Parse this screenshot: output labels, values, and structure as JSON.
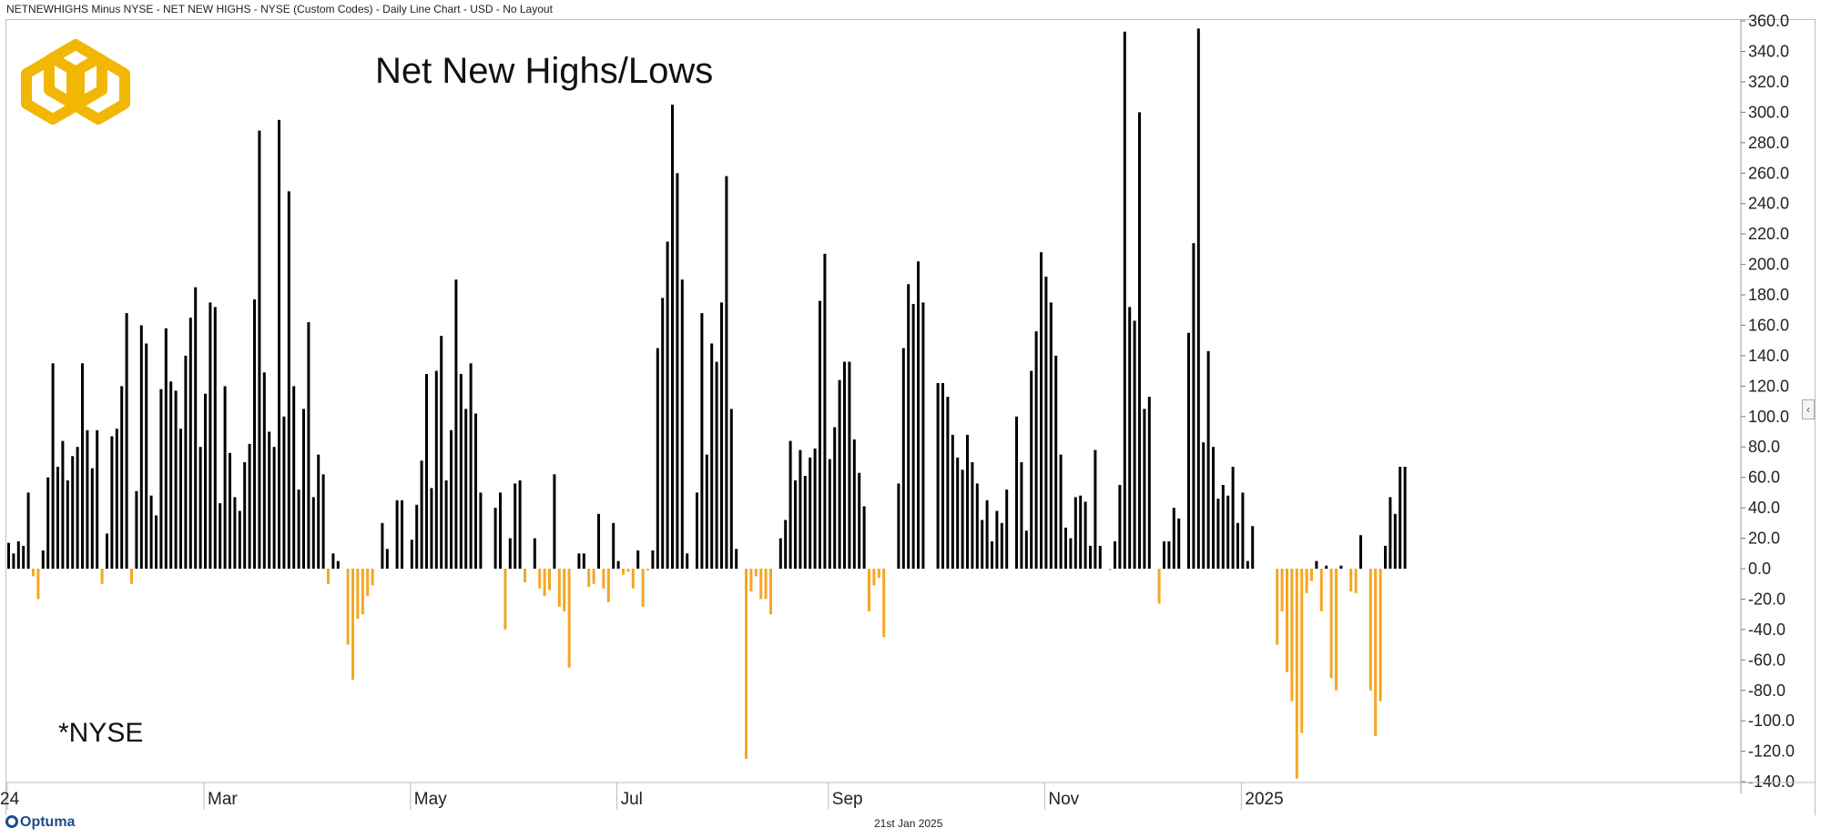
{
  "header": {
    "title": "NETNEWHIGHS Minus NYSE - NET NEW HIGHS - NYSE (Custom Codes) - Daily Line Chart - USD - No Layout"
  },
  "footer": {
    "brand": "Optuma",
    "date": "21st Jan 2025"
  },
  "colors": {
    "positive": "#000000",
    "negative": "#f5a623",
    "logo": "#f2b705",
    "axis": "#999999"
  },
  "chart_data": {
    "type": "bar",
    "title": "Net New Highs/Lows",
    "annotation": "*NYSE",
    "xlabel": "",
    "ylabel": "",
    "ylim": [
      -140,
      360
    ],
    "yticks": [
      -140,
      -120,
      -100,
      -80,
      -60,
      -40,
      -20,
      0,
      20,
      40,
      60,
      80,
      100,
      120,
      140,
      160,
      180,
      200,
      220,
      240,
      260,
      280,
      300,
      320,
      340,
      360
    ],
    "ytick_labels": [
      "-140.0",
      "-120.0",
      "-100.0",
      "-80.0",
      "-60.0",
      "-40.0",
      "-20.0",
      "0.0",
      "20.0",
      "40.0",
      "60.0",
      "80.0",
      "100.0",
      "120.0",
      "140.0",
      "160.0",
      "180.0",
      "200.0",
      "220.0",
      "240.0",
      "260.0",
      "280.0",
      "300.0",
      "320.0",
      "340.0",
      "360.0"
    ],
    "xticks": [
      {
        "label": "24",
        "index": 0
      },
      {
        "label": "Mar",
        "index": 40
      },
      {
        "label": "May",
        "index": 82
      },
      {
        "label": "Jul",
        "index": 124
      },
      {
        "label": "Sep",
        "index": 167
      },
      {
        "label": "Nov",
        "index": 211
      },
      {
        "label": "2025",
        "index": 251
      }
    ],
    "series": [
      {
        "values": [
          17,
          10,
          18,
          15,
          50,
          -5,
          -20,
          12,
          60,
          135,
          67,
          84,
          58,
          74,
          80,
          135,
          91,
          66,
          91,
          -10,
          23,
          87,
          92,
          120,
          168,
          -10,
          51,
          160,
          148,
          48,
          35,
          118,
          158,
          123,
          117,
          92,
          140,
          165,
          185,
          80,
          115,
          175,
          172,
          43,
          120,
          76,
          47,
          38,
          70,
          82,
          177,
          288,
          129,
          90,
          80,
          295,
          100,
          248,
          120,
          52,
          105,
          162,
          47,
          75,
          62,
          -10,
          10,
          5,
          0,
          -50,
          -73,
          -33,
          -30,
          -18,
          -11,
          0,
          30,
          13,
          0,
          45,
          45,
          0,
          19,
          42,
          71,
          128,
          53,
          130,
          153,
          58,
          91,
          190,
          128,
          105,
          135,
          102,
          50,
          0,
          0,
          40,
          50,
          -40,
          20,
          56,
          58,
          -9,
          0,
          20,
          -13,
          -18,
          -14,
          62,
          -25,
          -28,
          -65,
          0,
          10,
          10,
          -12,
          -10,
          36,
          -13,
          -22,
          30,
          5,
          -4,
          -2,
          -13,
          12,
          -25,
          -1,
          12,
          145,
          178,
          215,
          305,
          260,
          190,
          10,
          0,
          50,
          168,
          75,
          148,
          136,
          175,
          258,
          105,
          13,
          0,
          -125,
          -15,
          -5,
          -20,
          -20,
          -30,
          0,
          20,
          32,
          84,
          58,
          78,
          61,
          73,
          79,
          176,
          207,
          72,
          93,
          124,
          136,
          136,
          85,
          63,
          41,
          -28,
          -11,
          -6,
          -45,
          0,
          0,
          56,
          145,
          187,
          174,
          202,
          175,
          0,
          0,
          122,
          122,
          113,
          88,
          73,
          65,
          88,
          70,
          56,
          32,
          45,
          18,
          38,
          30,
          52,
          0,
          100,
          70,
          25,
          130,
          156,
          208,
          192,
          175,
          140,
          75,
          27,
          20,
          47,
          48,
          44,
          15,
          78,
          15,
          0,
          -1,
          18,
          55,
          353,
          172,
          163,
          300,
          105,
          113,
          0,
          -23,
          18,
          18,
          40,
          33,
          0,
          155,
          214,
          355,
          83,
          143,
          80,
          46,
          55,
          48,
          67,
          30,
          50,
          5,
          28,
          0,
          0,
          0,
          0,
          -50,
          -28,
          -68,
          -87,
          -138,
          -108,
          -16,
          -8,
          5,
          -28,
          2,
          -72,
          -80,
          2,
          0,
          -15,
          -16,
          22,
          0,
          -80,
          -110,
          -87,
          15,
          47,
          36,
          67,
          67
        ]
      }
    ]
  }
}
